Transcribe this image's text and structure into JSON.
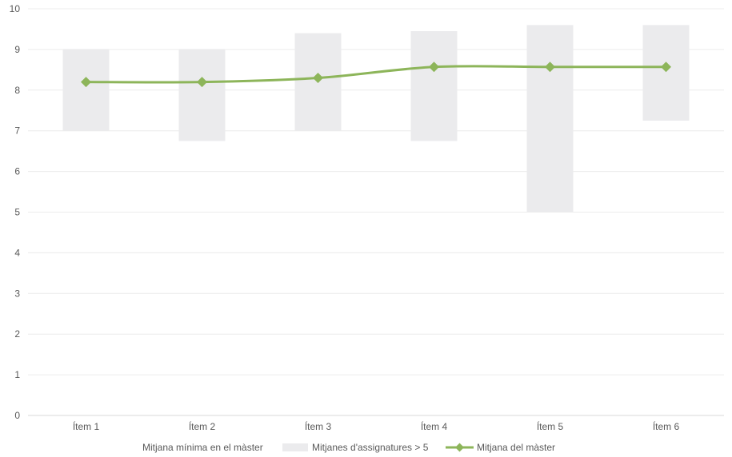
{
  "chart_data": {
    "type": "bar",
    "categories": [
      "Ítem 1",
      "Ítem 2",
      "Ítem 3",
      "Ítem 4",
      "Ítem 5",
      "Ítem 6"
    ],
    "ylim": [
      0,
      10
    ],
    "yticks": [
      "0",
      "1",
      "2",
      "3",
      "4",
      "5",
      "6",
      "7",
      "8",
      "9",
      "10"
    ],
    "grid": true,
    "legend_position": "bottom",
    "series": [
      {
        "name": "Mitjana mínima en el màster",
        "kind": "stacked-base-invisible",
        "values": [
          7.0,
          6.75,
          7.0,
          6.75,
          5.0,
          7.25
        ]
      },
      {
        "name": "Mitjanes d'assignatures > 5",
        "kind": "stacked-range-bar",
        "values": [
          2.0,
          2.25,
          2.4,
          2.7,
          4.6,
          2.35
        ],
        "color": "#ebebed"
      },
      {
        "name": "Mitjana del màster",
        "kind": "line",
        "values": [
          8.2,
          8.2,
          8.3,
          8.57,
          8.57,
          8.57
        ],
        "color": "#8db55a"
      }
    ]
  }
}
